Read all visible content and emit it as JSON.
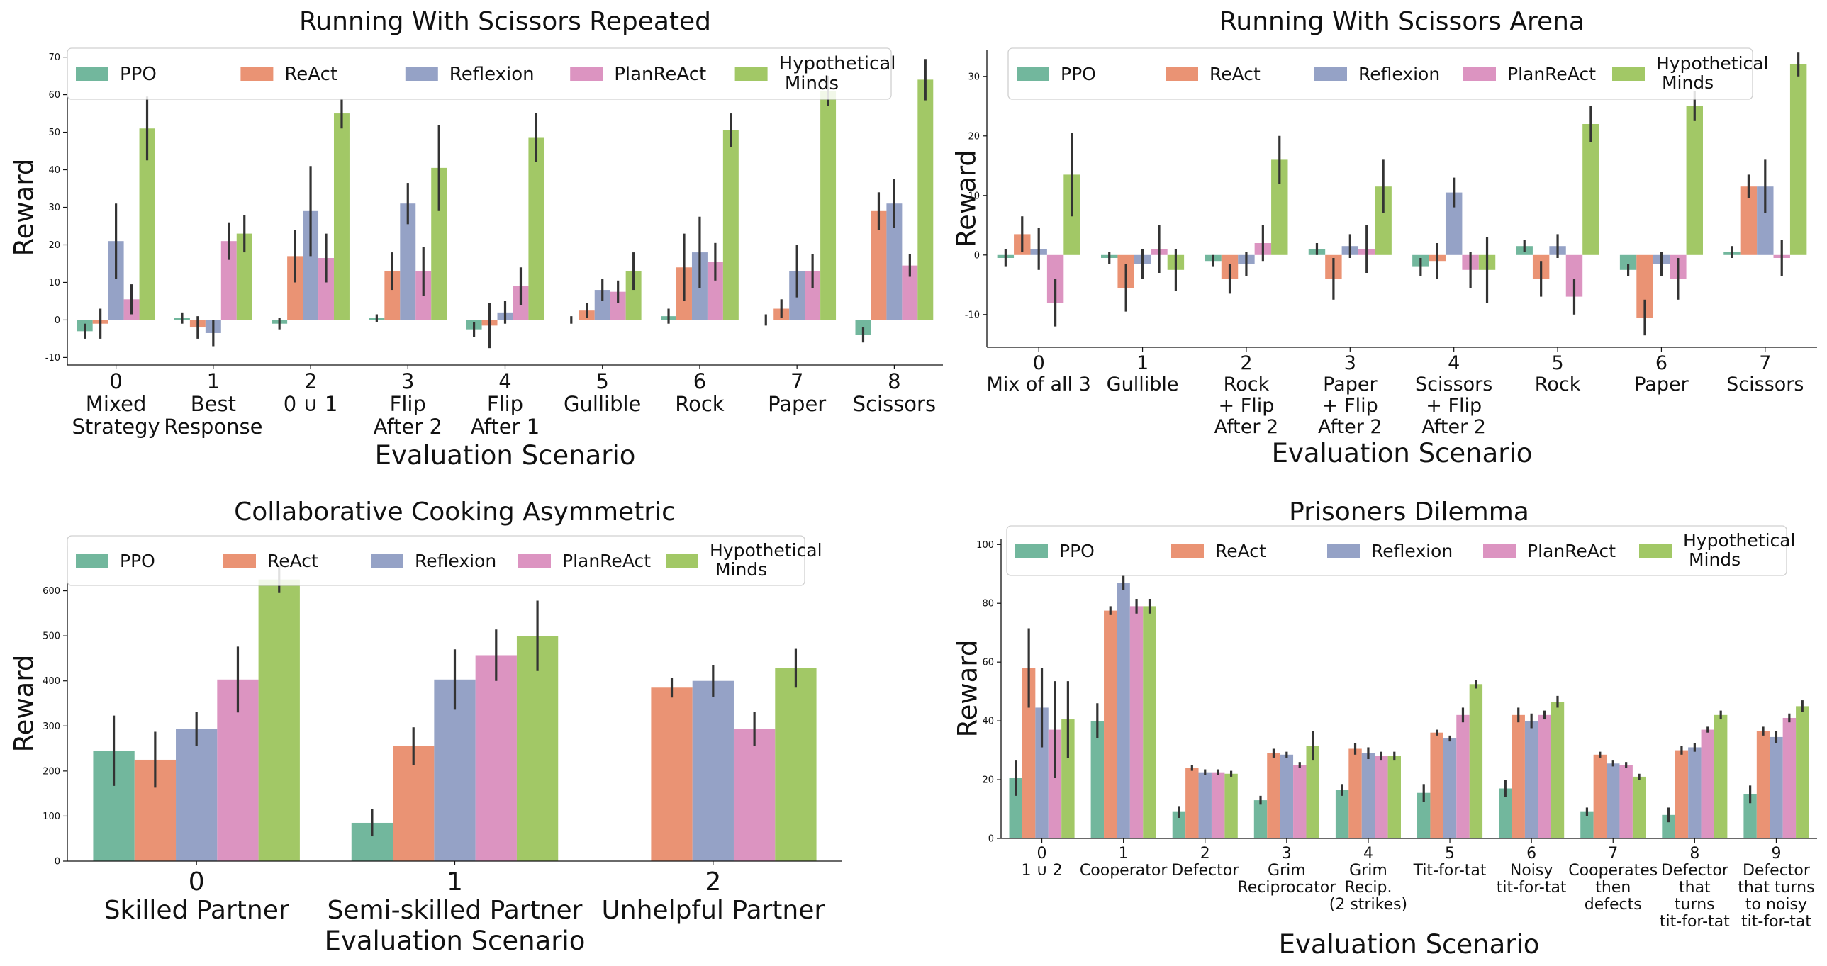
{
  "palette": {
    "PPO": "#72b79d",
    "ReAct": "#ea9374",
    "Reflexion": "#95a2c6",
    "PlanReAct": "#dc94c1",
    "Hypothetical Minds": "#a2c866",
    "errorbar": "#333333"
  },
  "chart_data": [
    {
      "type": "bar",
      "title": "Running With Scissors Repeated",
      "xlabel": "Evaluation Scenario",
      "ylabel": "Reward",
      "ylim": [
        -12,
        72
      ],
      "yticks": [
        -10,
        0,
        10,
        20,
        30,
        40,
        50,
        60,
        70
      ],
      "grid": false,
      "legend_position": "top",
      "categories": [
        [
          "0",
          "Mixed",
          "Strategy"
        ],
        [
          "1",
          "Best",
          "Response"
        ],
        [
          "2",
          "0 ∪ 1"
        ],
        [
          "3",
          "Flip",
          "After 2"
        ],
        [
          "4",
          "Flip",
          "After 1"
        ],
        [
          "5",
          "Gullible"
        ],
        [
          "6",
          "Rock"
        ],
        [
          "7",
          "Paper"
        ],
        [
          "8",
          "Scissors"
        ]
      ],
      "series": [
        {
          "name": "PPO",
          "legend": [
            "PPO"
          ],
          "values": [
            -3,
            0.5,
            -1,
            0.5,
            -2.5,
            0,
            1,
            0,
            -4
          ],
          "err": [
            2,
            1.5,
            1.5,
            1,
            2,
            1,
            2,
            1.5,
            2
          ]
        },
        {
          "name": "ReAct",
          "legend": [
            "ReAct"
          ],
          "values": [
            -1,
            -2,
            17,
            13,
            -1.5,
            2.5,
            14,
            3,
            29
          ],
          "err": [
            4,
            3,
            7,
            5,
            6,
            2,
            9,
            2.5,
            5
          ]
        },
        {
          "name": "Reflexion",
          "legend": [
            "Reflexion"
          ],
          "values": [
            21,
            -3.5,
            29,
            31,
            2,
            8,
            18,
            13,
            31
          ],
          "err": [
            10,
            3.5,
            12,
            5.5,
            3,
            3,
            9.5,
            7,
            6.5
          ]
        },
        {
          "name": "PlanReAct",
          "legend": [
            "PlanReAct"
          ],
          "values": [
            5.5,
            21,
            16.5,
            13,
            9,
            7.5,
            15.5,
            13,
            14.5
          ],
          "err": [
            4,
            5,
            6.5,
            6.5,
            5,
            3,
            5,
            4.5,
            3
          ]
        },
        {
          "name": "Hypothetical Minds",
          "legend": [
            "Hypothetical",
            " Minds"
          ],
          "values": [
            51,
            23,
            55,
            40.5,
            48.5,
            13,
            50.5,
            61,
            64
          ],
          "err": [
            8.5,
            5,
            4,
            11.5,
            6.5,
            5,
            4.5,
            4,
            5.5
          ]
        }
      ]
    },
    {
      "type": "bar",
      "title": "Running With Scissors Arena",
      "xlabel": "Evaluation Scenario",
      "ylabel": "Reward",
      "ylim": [
        -15.5,
        34.5
      ],
      "yticks": [
        -10,
        0,
        10,
        20,
        30
      ],
      "grid": false,
      "legend_position": "top",
      "categories": [
        [
          "0",
          "Mix of all 3"
        ],
        [
          "1",
          "Gullible"
        ],
        [
          "2",
          "Rock",
          "+ Flip",
          "After 2"
        ],
        [
          "3",
          "Paper",
          "+ Flip",
          "After 2"
        ],
        [
          "4",
          "Scissors",
          "+ Flip",
          "After 2"
        ],
        [
          "5",
          "Rock"
        ],
        [
          "6",
          "Paper"
        ],
        [
          "7",
          "Scissors"
        ]
      ],
      "series": [
        {
          "name": "PPO",
          "legend": [
            "PPO"
          ],
          "values": [
            -0.5,
            -0.5,
            -1,
            1,
            -2,
            1.5,
            -2.5,
            0.5
          ],
          "err": [
            1.5,
            1,
            1,
            1,
            1.5,
            1,
            1,
            1
          ]
        },
        {
          "name": "ReAct",
          "legend": [
            "ReAct"
          ],
          "values": [
            3.5,
            -5.5,
            -4,
            -4,
            -1,
            -4,
            -10.5,
            11.5
          ],
          "err": [
            3,
            4,
            2.5,
            3.5,
            3,
            3,
            3,
            2
          ]
        },
        {
          "name": "Reflexion",
          "legend": [
            "Reflexion"
          ],
          "values": [
            1,
            -1.5,
            -1.5,
            1.5,
            10.5,
            1.5,
            -1.5,
            11.5
          ],
          "err": [
            3.5,
            2.5,
            2,
            2,
            2.5,
            2,
            2,
            4.5
          ]
        },
        {
          "name": "PlanReAct",
          "legend": [
            "PlanReAct"
          ],
          "values": [
            -8,
            1,
            2,
            1,
            -2.5,
            -7,
            -4,
            -0.5
          ],
          "err": [
            4,
            4,
            3,
            4,
            3,
            3,
            3.5,
            3
          ]
        },
        {
          "name": "Hypothetical Minds",
          "legend": [
            "Hypothetical",
            " Minds"
          ],
          "values": [
            13.5,
            -2.5,
            16,
            11.5,
            -2.5,
            22,
            25,
            32
          ],
          "err": [
            7,
            3.5,
            4,
            4.5,
            5.5,
            3,
            2.5,
            2
          ]
        }
      ]
    },
    {
      "type": "bar",
      "title": "Collaborative Cooking Asymmetric",
      "xlabel": "Evaluation Scenario",
      "ylabel": "Reward",
      "ylim": [
        0,
        700
      ],
      "yticks": [
        0,
        100,
        200,
        300,
        400,
        500,
        600
      ],
      "grid": false,
      "legend_position": "top",
      "categories": [
        [
          "0",
          "Skilled Partner"
        ],
        [
          "1",
          "Semi-skilled Partner"
        ],
        [
          "2",
          "Unhelpful Partner"
        ]
      ],
      "series": [
        {
          "name": "PPO",
          "legend": [
            "PPO"
          ],
          "values": [
            245,
            85,
            0
          ],
          "err": [
            78,
            30,
            0
          ]
        },
        {
          "name": "ReAct",
          "legend": [
            "ReAct"
          ],
          "values": [
            225,
            255,
            385
          ],
          "err": [
            62,
            42,
            22
          ]
        },
        {
          "name": "Reflexion",
          "legend": [
            "Reflexion"
          ],
          "values": [
            293,
            403,
            400
          ],
          "err": [
            38,
            67,
            35
          ]
        },
        {
          "name": "PlanReAct",
          "legend": [
            "PlanReAct"
          ],
          "values": [
            403,
            457,
            293
          ],
          "err": [
            73,
            57,
            38
          ]
        },
        {
          "name": "Hypothetical Minds",
          "legend": [
            "Hypothetical",
            " Minds"
          ],
          "values": [
            625,
            500,
            428
          ],
          "err": [
            30,
            78,
            43
          ]
        }
      ]
    },
    {
      "type": "bar",
      "title": "Prisoners Dilemma",
      "xlabel": "Evaluation Scenario",
      "ylabel": "Reward",
      "ylim": [
        0,
        102
      ],
      "yticks": [
        0,
        20,
        40,
        60,
        80,
        100
      ],
      "grid": false,
      "legend_position": "top",
      "categories": [
        [
          "0",
          "1 ∪ 2"
        ],
        [
          "1",
          "Cooperator"
        ],
        [
          "2",
          "Defector"
        ],
        [
          "3",
          "Grim",
          "Reciprocator"
        ],
        [
          "4",
          "Grim",
          "Recip.",
          "(2 strikes)"
        ],
        [
          "5",
          "Tit-for-tat"
        ],
        [
          "6",
          "Noisy",
          "tit-for-tat"
        ],
        [
          "7",
          "Cooperates",
          "then",
          "defects"
        ],
        [
          "8",
          "Defector",
          "that",
          "turns",
          "tit-for-tat"
        ],
        [
          "9",
          "Defector",
          "that turns",
          "to noisy",
          "tit-for-tat"
        ]
      ],
      "series": [
        {
          "name": "PPO",
          "legend": [
            "PPO"
          ],
          "values": [
            20.5,
            40,
            9,
            13,
            16.5,
            15.5,
            17,
            9,
            8,
            15
          ],
          "err": [
            6,
            6,
            2,
            1.5,
            2,
            3,
            3,
            1.5,
            2.5,
            3
          ]
        },
        {
          "name": "ReAct",
          "legend": [
            "ReAct"
          ],
          "values": [
            58,
            77.5,
            24,
            29,
            30.5,
            36,
            42,
            28.5,
            30,
            36.5
          ],
          "err": [
            13.5,
            1.5,
            1,
            1.5,
            2,
            1,
            2.5,
            1,
            1.5,
            1.5
          ]
        },
        {
          "name": "Reflexion",
          "legend": [
            "Reflexion"
          ],
          "values": [
            44.5,
            87,
            22.5,
            28.5,
            29,
            34,
            40,
            25.5,
            31,
            34.5
          ],
          "err": [
            13.5,
            2.5,
            1,
            1,
            2,
            1,
            2.5,
            1,
            1.5,
            2
          ]
        },
        {
          "name": "PlanReAct",
          "legend": [
            "PlanReAct"
          ],
          "values": [
            37,
            79,
            22.5,
            25,
            28,
            42,
            42,
            25,
            37,
            41
          ],
          "err": [
            16.5,
            2.5,
            1,
            1,
            1.5,
            2.5,
            1.5,
            1,
            1,
            1.5
          ]
        },
        {
          "name": "Hypothetical Minds",
          "legend": [
            "Hypothetical",
            " Minds"
          ],
          "values": [
            40.5,
            79,
            22,
            31.5,
            28,
            52.5,
            46.5,
            21,
            42,
            45
          ],
          "err": [
            13,
            2.5,
            1,
            5,
            1.5,
            1.5,
            2,
            1,
            1.5,
            2
          ]
        }
      ]
    }
  ]
}
